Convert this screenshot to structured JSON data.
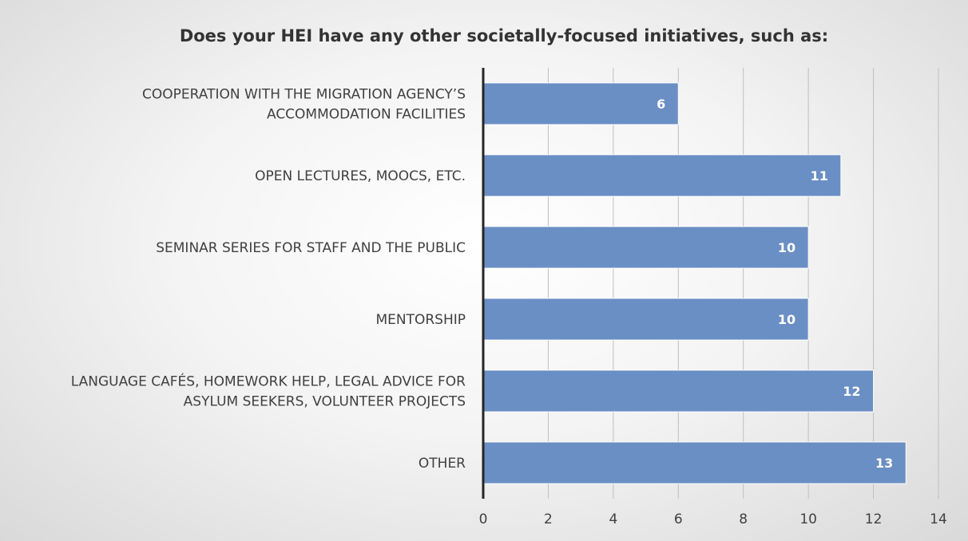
{
  "chart_data": {
    "type": "bar",
    "orientation": "horizontal",
    "title": "Does your HEI have any other societally-focused initiatives, such as:",
    "xlabel": "",
    "ylabel": "",
    "categories": [
      [
        "COOPERATION WITH THE MIGRATION AGENCY’S",
        "ACCOMMODATION FACILITIES"
      ],
      [
        "OPEN LECTURES, MOOCS, ETC."
      ],
      [
        "SEMINAR SERIES FOR STAFF AND THE PUBLIC"
      ],
      [
        "MENTORSHIP"
      ],
      [
        "LANGUAGE CAFÉS, HOMEWORK HELP, LEGAL ADVICE FOR",
        "ASYLUM SEEKERS, VOLUNTEER PROJECTS"
      ],
      [
        "OTHER"
      ]
    ],
    "values": [
      6,
      11,
      10,
      10,
      12,
      13
    ],
    "xlim": [
      0,
      14
    ],
    "xticks": [
      0,
      2,
      4,
      6,
      8,
      10,
      12,
      14
    ],
    "grid": true,
    "legend": "none",
    "data_labels": true,
    "colors": {
      "bar": "#6a8fc4",
      "bar_edge": "#ffffff",
      "grid": "#bfbfbf",
      "axis": "#262626"
    }
  }
}
